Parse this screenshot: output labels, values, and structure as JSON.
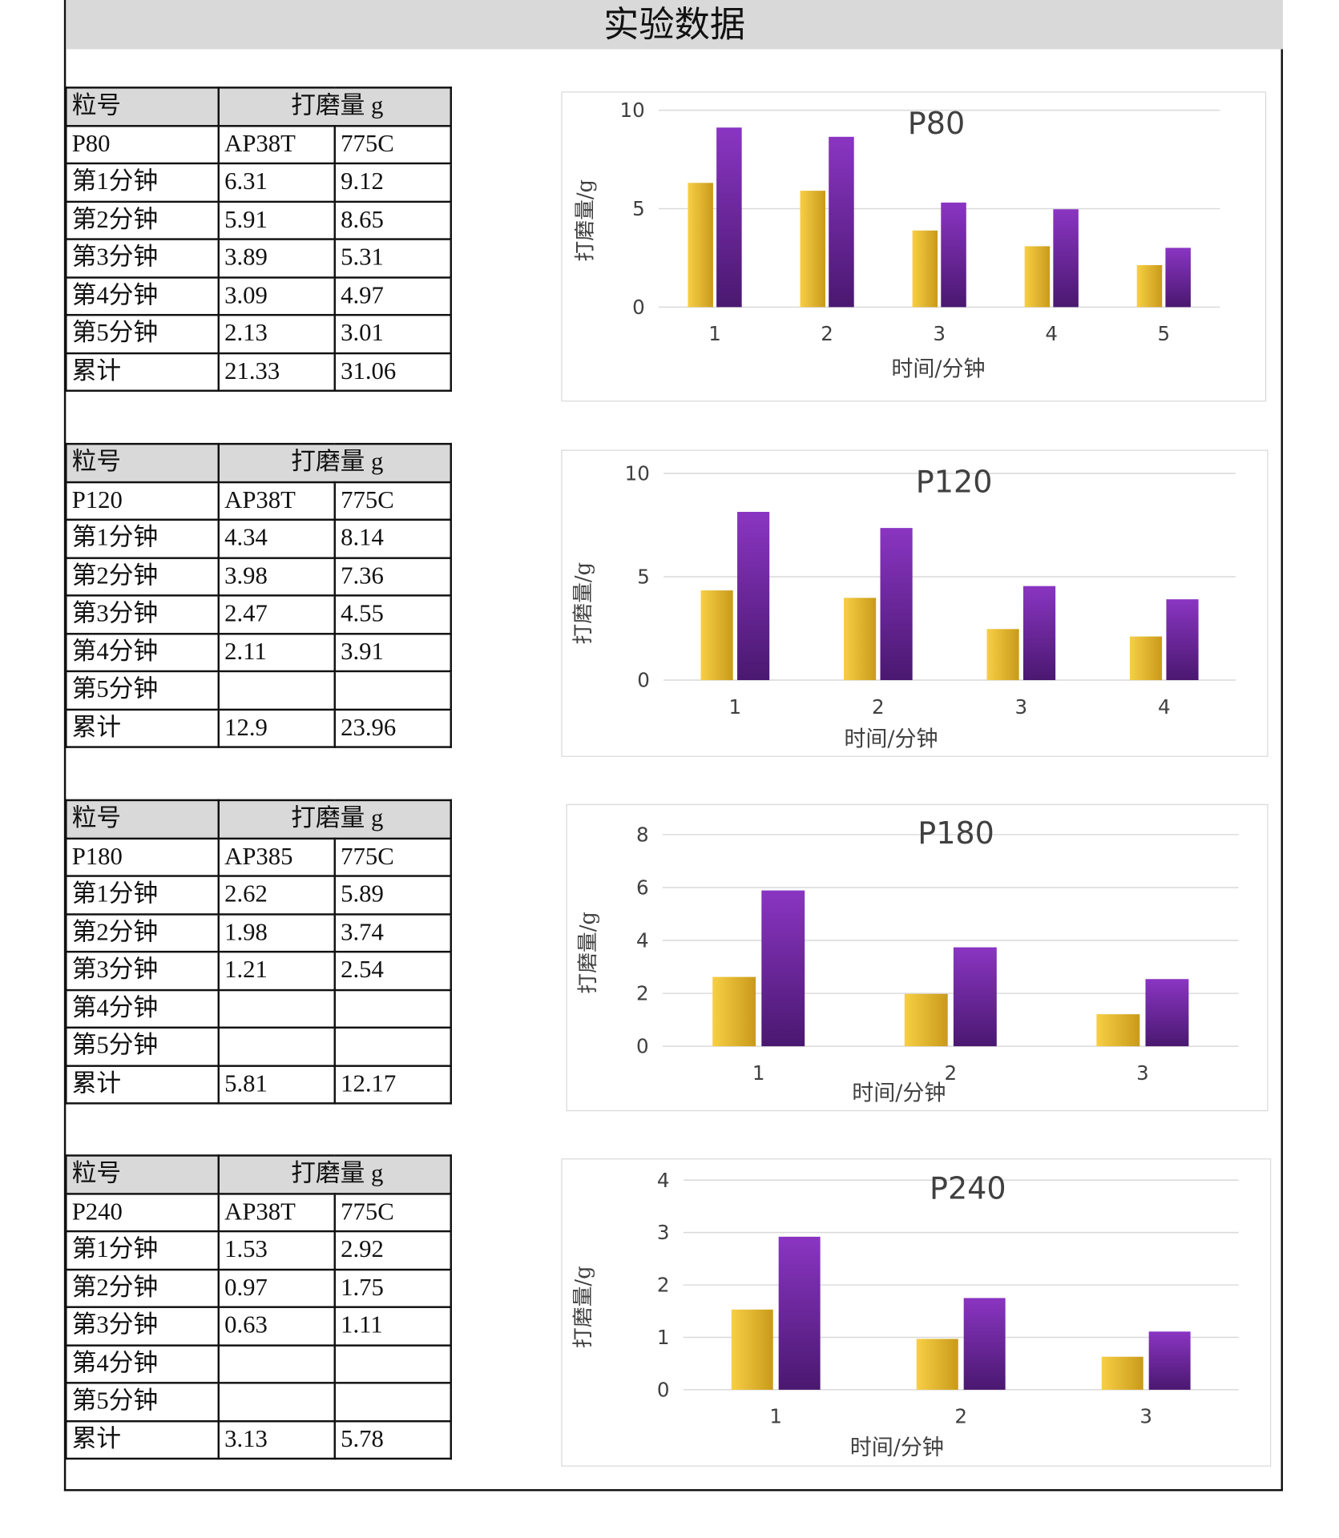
{
  "title": "实验数据",
  "tables": [
    {
      "header": {
        "grit": "粒号",
        "amount": "打磨量 g"
      },
      "rows": [
        [
          "P80",
          "AP38T",
          "775C"
        ],
        [
          "第1分钟",
          "6.31",
          "9.12"
        ],
        [
          "第2分钟",
          "5.91",
          "8.65"
        ],
        [
          "第3分钟",
          "3.89",
          "5.31"
        ],
        [
          "第4分钟",
          "3.09",
          "4.97"
        ],
        [
          "第5分钟",
          "2.13",
          "3.01"
        ],
        [
          "累计",
          "21.33",
          "31.06"
        ]
      ]
    },
    {
      "header": {
        "grit": "粒号",
        "amount": "打磨量 g"
      },
      "rows": [
        [
          "P120",
          "AP38T",
          "775C"
        ],
        [
          "第1分钟",
          "4.34",
          "8.14"
        ],
        [
          "第2分钟",
          "3.98",
          "7.36"
        ],
        [
          "第3分钟",
          "2.47",
          "4.55"
        ],
        [
          "第4分钟",
          "2.11",
          "3.91"
        ],
        [
          "第5分钟",
          "",
          ""
        ],
        [
          "累计",
          "12.9",
          "23.96"
        ]
      ]
    },
    {
      "header": {
        "grit": "粒号",
        "amount": "打磨量 g"
      },
      "rows": [
        [
          "P180",
          "AP385",
          "775C"
        ],
        [
          "第1分钟",
          "2.62",
          "5.89"
        ],
        [
          "第2分钟",
          "1.98",
          "3.74"
        ],
        [
          "第3分钟",
          "1.21",
          "2.54"
        ],
        [
          "第4分钟",
          "",
          ""
        ],
        [
          "第5分钟",
          "",
          ""
        ],
        [
          "累计",
          "5.81",
          "12.17"
        ]
      ]
    },
    {
      "header": {
        "grit": "粒号",
        "amount": "打磨量 g"
      },
      "rows": [
        [
          "P240",
          "AP38T",
          "775C"
        ],
        [
          "第1分钟",
          "1.53",
          "2.92"
        ],
        [
          "第2分钟",
          "0.97",
          "1.75"
        ],
        [
          "第3分钟",
          "0.63",
          "1.11"
        ],
        [
          "第4分钟",
          "",
          ""
        ],
        [
          "第5分钟",
          "",
          ""
        ],
        [
          "累计",
          "3.13",
          "5.78"
        ]
      ]
    }
  ],
  "chart_data": [
    {
      "type": "bar",
      "title": "P80",
      "xlabel": "时间/分钟",
      "ylabel": "打磨量/g",
      "categories": [
        "1",
        "2",
        "3",
        "4",
        "5"
      ],
      "series": [
        {
          "values": [
            6.31,
            5.91,
            3.89,
            3.09,
            2.13
          ],
          "color": "#f0c030"
        },
        {
          "values": [
            9.12,
            8.65,
            5.31,
            4.97,
            3.01
          ],
          "color": "#7030a0"
        }
      ],
      "ylim": [
        0,
        10
      ],
      "yticks": [
        0,
        5,
        10
      ],
      "grid": true,
      "legend": "none"
    },
    {
      "type": "bar",
      "title": "P120",
      "xlabel": "时间/分钟",
      "ylabel": "打磨量/g",
      "categories": [
        "1",
        "2",
        "3",
        "4"
      ],
      "series": [
        {
          "values": [
            4.34,
            3.98,
            2.47,
            2.11
          ],
          "color": "#f0c030"
        },
        {
          "values": [
            8.14,
            7.36,
            4.55,
            3.91
          ],
          "color": "#7030a0"
        }
      ],
      "ylim": [
        0,
        10
      ],
      "yticks": [
        0,
        5,
        10
      ],
      "grid": true,
      "legend": "none"
    },
    {
      "type": "bar",
      "title": "P180",
      "xlabel": "时间/分钟",
      "ylabel": "打磨量/g",
      "categories": [
        "1",
        "2",
        "3"
      ],
      "series": [
        {
          "values": [
            2.62,
            1.98,
            1.21
          ],
          "color": "#f0c030"
        },
        {
          "values": [
            5.89,
            3.74,
            2.54
          ],
          "color": "#7030a0"
        }
      ],
      "ylim": [
        0,
        8
      ],
      "yticks": [
        0,
        2,
        4,
        6,
        8
      ],
      "grid": true,
      "legend": "none"
    },
    {
      "type": "bar",
      "title": "P240",
      "xlabel": "时间/分钟",
      "ylabel": "打磨量/g",
      "categories": [
        "1",
        "2",
        "3"
      ],
      "series": [
        {
          "values": [
            1.53,
            0.97,
            0.63
          ],
          "color": "#f0c030"
        },
        {
          "values": [
            2.92,
            1.75,
            1.11
          ],
          "color": "#7030a0"
        }
      ],
      "ylim": [
        0,
        4
      ],
      "yticks": [
        0,
        1,
        2,
        3,
        4
      ],
      "grid": true,
      "legend": "none"
    }
  ]
}
